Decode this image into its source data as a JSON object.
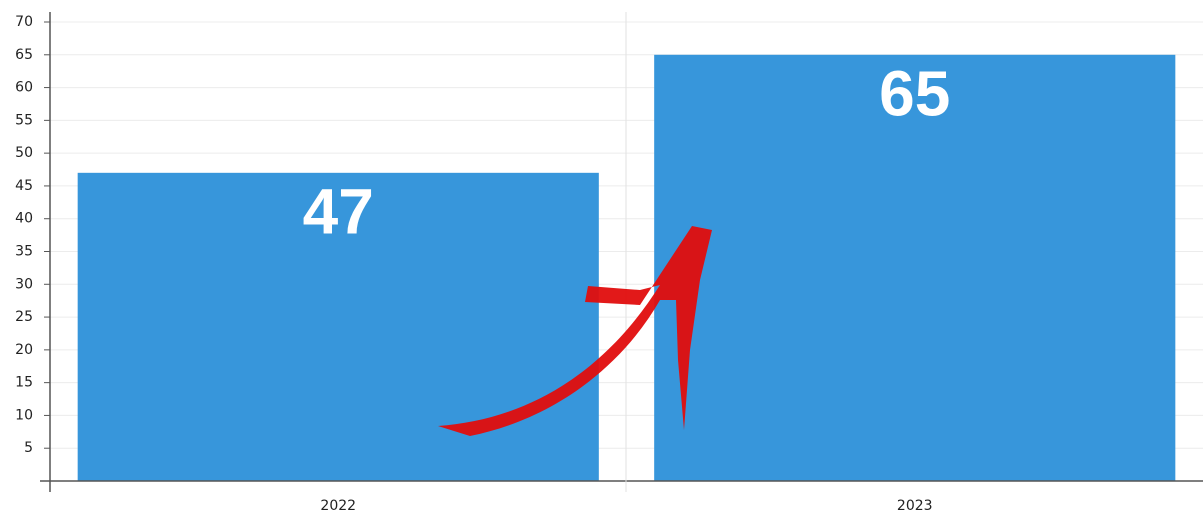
{
  "chart_data": {
    "type": "bar",
    "categories": [
      "2022",
      "2023"
    ],
    "values": [
      47,
      65
    ],
    "color": "#3796db",
    "ylim": [
      0,
      70
    ],
    "yticks": [
      5,
      10,
      15,
      20,
      25,
      30,
      35,
      40,
      45,
      50,
      55,
      60,
      65,
      70
    ],
    "grid": true
  }
}
